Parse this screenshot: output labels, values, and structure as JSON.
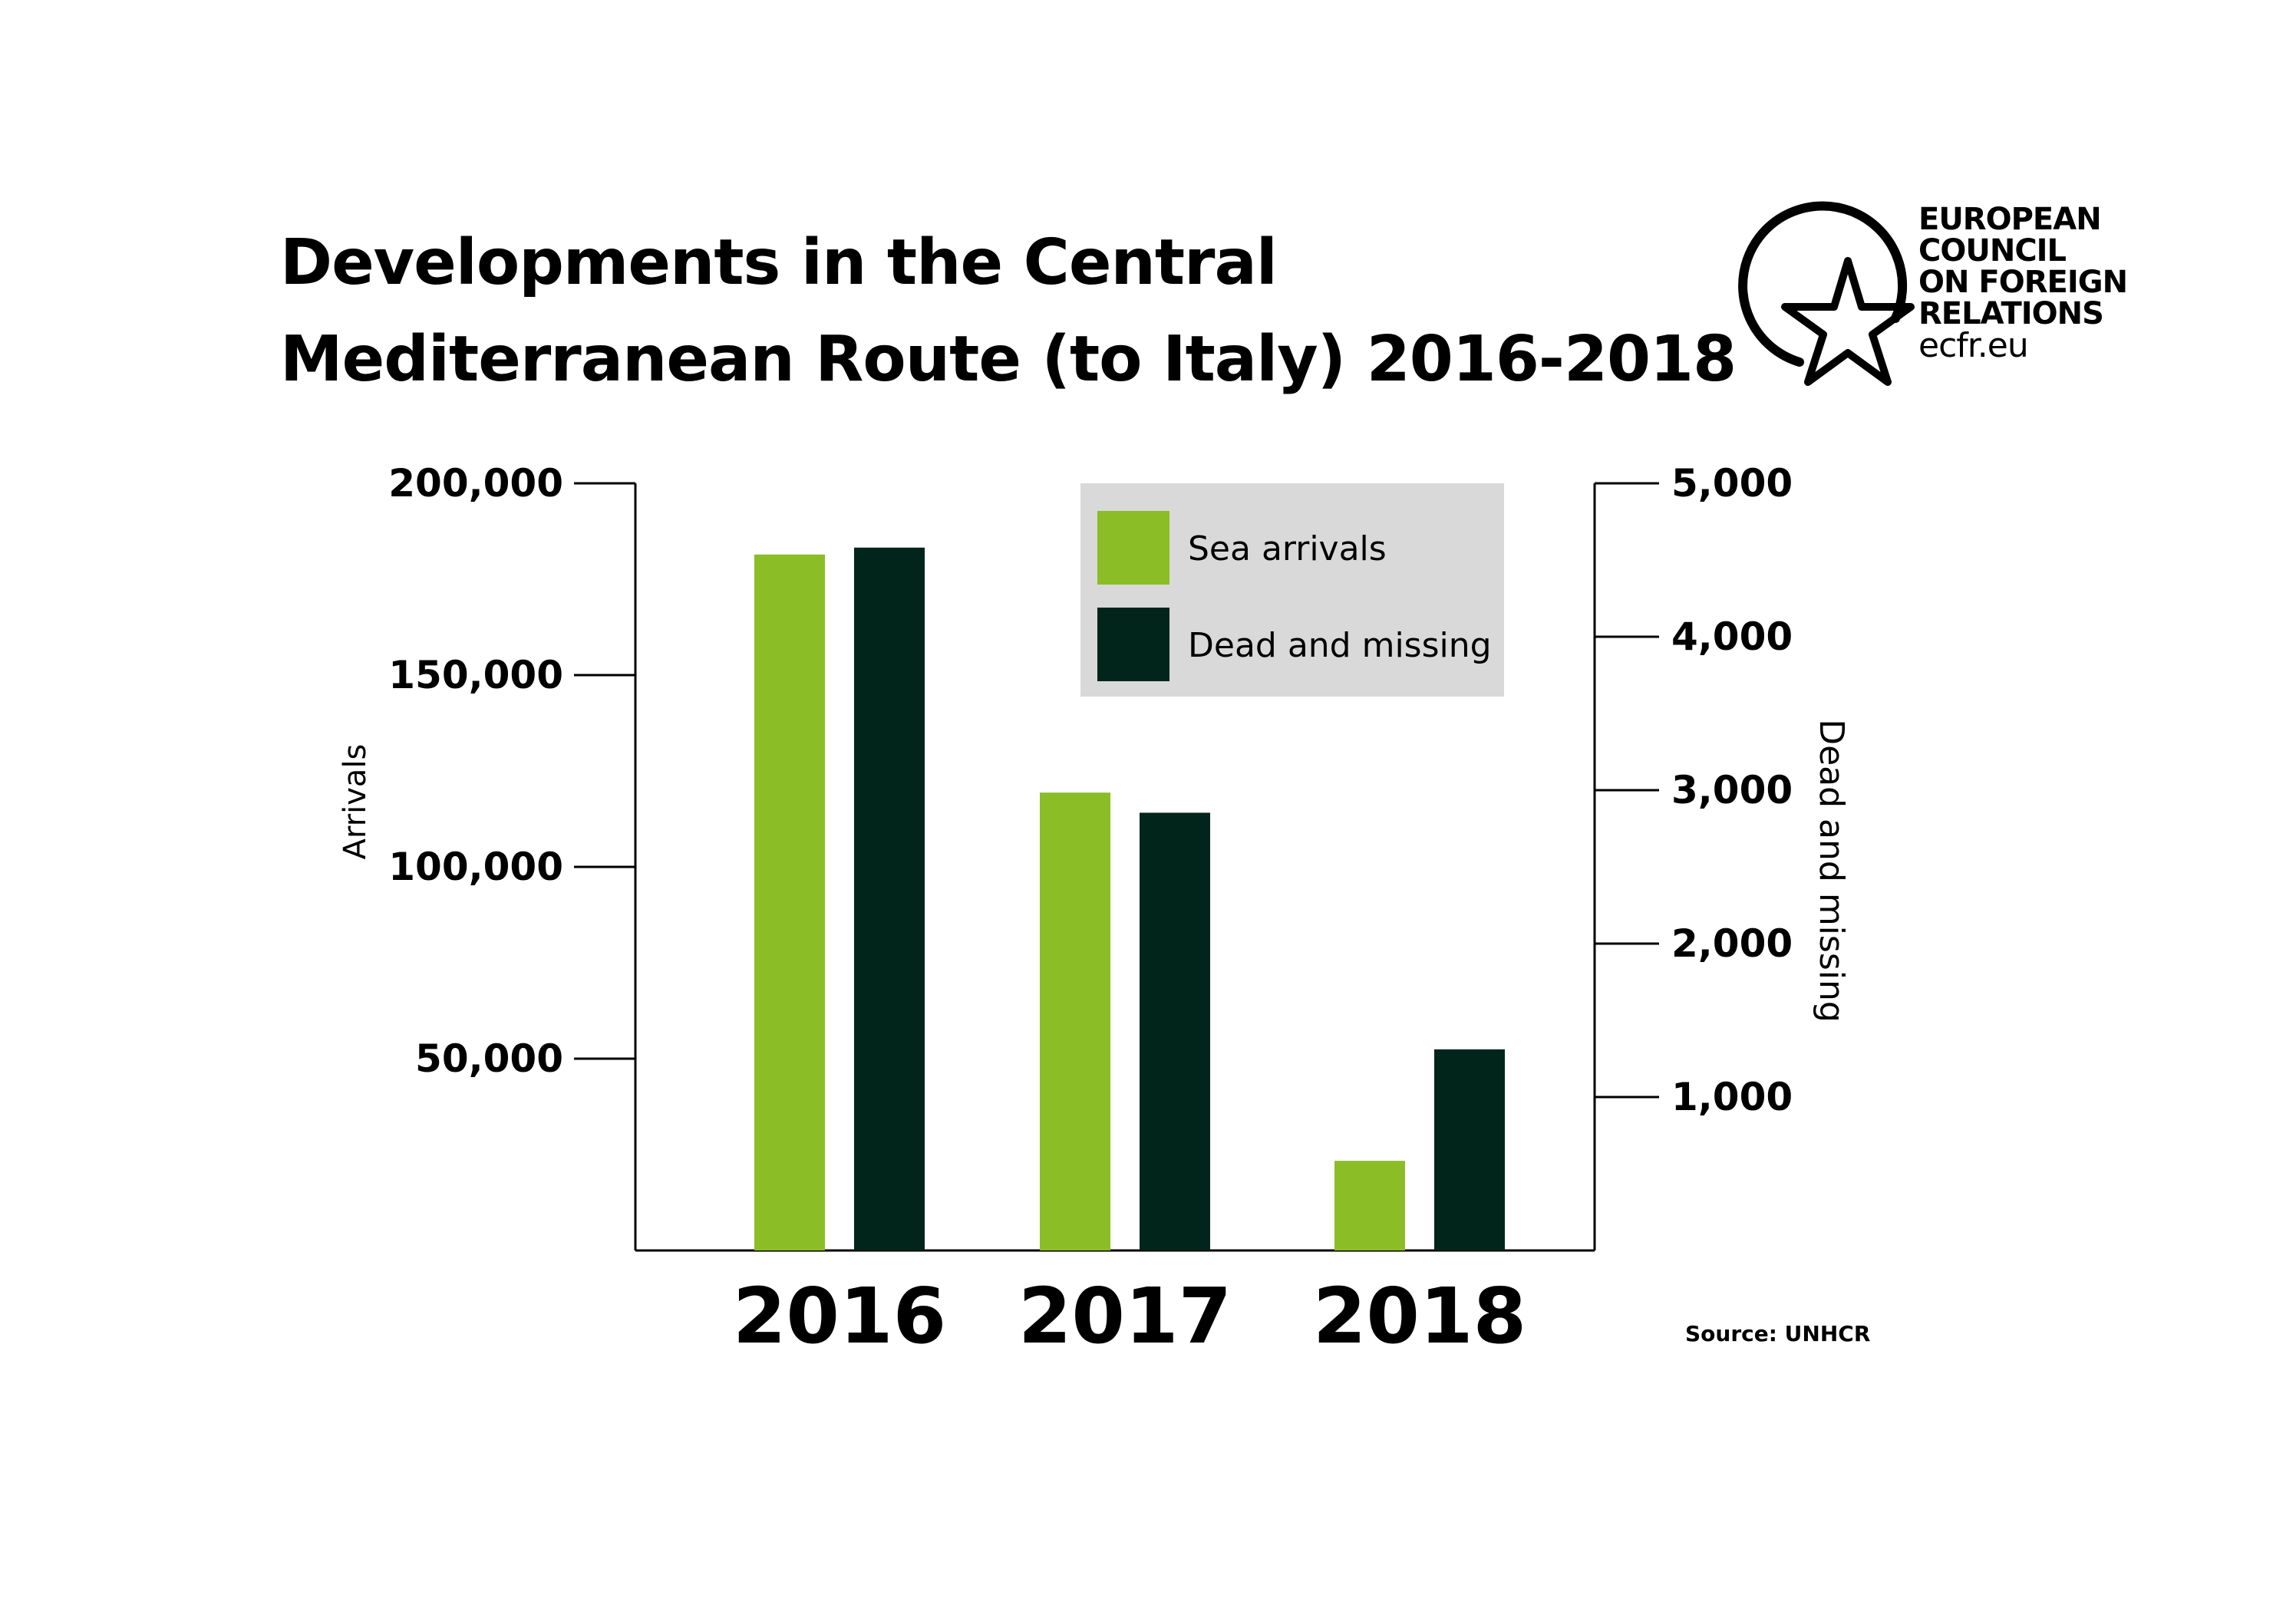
{
  "title_lines": [
    "Developments in the Central",
    "Mediterranean Route (to Italy) 2016-2018"
  ],
  "logo": {
    "lines": [
      "EUROPEAN",
      "COUNCIL",
      "ON FOREIGN",
      "RELATIONS"
    ],
    "url": "ecfr.eu",
    "icon": "star-in-circle-icon"
  },
  "source": "Source: UNHCR",
  "colors": {
    "sea_arrivals": "#8bbd26",
    "dead_missing": "#01251b",
    "legend_bg": "#d9d9d9",
    "axis": "#000000"
  },
  "chart_data": {
    "type": "bar",
    "categories": [
      "2016",
      "2017",
      "2018"
    ],
    "series": [
      {
        "name": "Sea arrivals",
        "axis": "left",
        "values": [
          181436,
          119369,
          23370
        ]
      },
      {
        "name": "Dead and missing",
        "axis": "right",
        "values": [
          4581,
          2853,
          1311
        ]
      }
    ],
    "ylabel": "Arrivals",
    "ylabel_right": "Dead and missing",
    "ylim": [
      0,
      200000
    ],
    "ylim_right": [
      0,
      5000
    ],
    "yticks": [
      50000,
      100000,
      150000,
      200000
    ],
    "yticks_labels": [
      "50,000",
      "100,000",
      "150,000",
      "200,000"
    ],
    "yticks_right": [
      1000,
      2000,
      3000,
      4000,
      5000
    ],
    "yticks_right_labels": [
      "1,000",
      "2,000",
      "3,000",
      "4,000",
      "5,000"
    ],
    "legend": {
      "position": "top-right",
      "entries": [
        "Sea arrivals",
        "Dead and missing"
      ]
    },
    "grid": false
  }
}
